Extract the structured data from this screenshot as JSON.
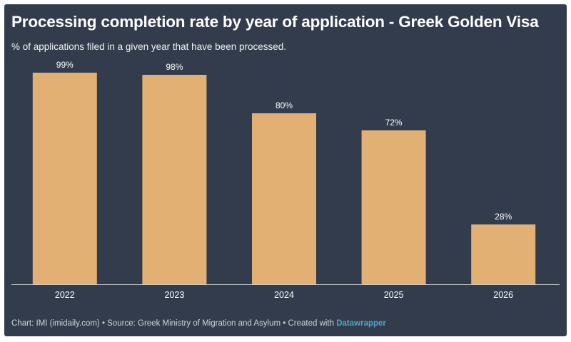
{
  "chart_data": {
    "type": "bar",
    "title": "Processing completion rate by year of application - Greek Golden Visa",
    "subtitle": "% of applications filed in a given year that have been processed.",
    "categories": [
      "2022",
      "2023",
      "2024",
      "2025",
      "2026"
    ],
    "values": [
      99,
      98,
      80,
      72,
      28
    ],
    "value_labels": [
      "99%",
      "98%",
      "80%",
      "72%",
      "28%"
    ],
    "xlabel": "",
    "ylabel": "",
    "ylim": [
      0,
      100
    ],
    "grid": false,
    "bar_color": "#e3b073",
    "background_color": "#333c4c"
  },
  "footer": {
    "chart_credit": "Chart: IMI (imidaily.com)",
    "separator": " • ",
    "source": "Source: Greek Ministry of Migration and Asylum",
    "created_with": "Created with ",
    "tool_name": "Datawrapper"
  }
}
